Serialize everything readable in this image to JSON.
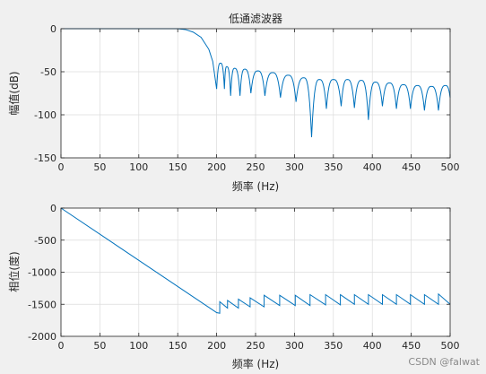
{
  "chart_data": [
    {
      "type": "line",
      "title": "低通滤波器",
      "xlabel": "频率 (Hz)",
      "ylabel": "幅值(dB)",
      "xlim": [
        0,
        500
      ],
      "ylim": [
        -150,
        0
      ],
      "xticks": [
        0,
        50,
        100,
        150,
        200,
        250,
        300,
        350,
        400,
        450,
        500
      ],
      "yticks": [
        0,
        -50,
        -100,
        -150
      ],
      "grid": true,
      "line_color": "#0072BD",
      "series": [
        {
          "x": [
            0,
            20,
            40,
            60,
            80,
            100,
            120,
            140,
            150,
            160,
            170,
            180,
            190,
            195,
            200
          ],
          "y": [
            0,
            0,
            0,
            0,
            0,
            0,
            0,
            0,
            0,
            -1,
            -4,
            -10,
            -24,
            -38,
            -70
          ]
        }
      ],
      "lobe_peaks": [
        {
          "f": 205,
          "db": -40
        },
        {
          "f": 213,
          "db": -44
        },
        {
          "f": 223,
          "db": -46
        },
        {
          "f": 236,
          "db": -47
        },
        {
          "f": 253,
          "db": -49
        },
        {
          "f": 272,
          "db": -51
        },
        {
          "f": 292,
          "db": -54
        },
        {
          "f": 312,
          "db": -57
        },
        {
          "f": 332,
          "db": -59
        },
        {
          "f": 350,
          "db": -59
        },
        {
          "f": 368,
          "db": -59
        },
        {
          "f": 386,
          "db": -60
        },
        {
          "f": 404,
          "db": -62
        },
        {
          "f": 422,
          "db": -63
        },
        {
          "f": 440,
          "db": -65
        },
        {
          "f": 458,
          "db": -66
        },
        {
          "f": 476,
          "db": -67
        },
        {
          "f": 494,
          "db": -66
        }
      ],
      "lobe_nulls": [
        {
          "f": 210,
          "db": -70
        },
        {
          "f": 218,
          "db": -78
        },
        {
          "f": 230,
          "db": -78
        },
        {
          "f": 244,
          "db": -75
        },
        {
          "f": 262,
          "db": -78
        },
        {
          "f": 282,
          "db": -80
        },
        {
          "f": 302,
          "db": -85
        },
        {
          "f": 322,
          "db": -126
        },
        {
          "f": 341,
          "db": -93
        },
        {
          "f": 360,
          "db": -90
        },
        {
          "f": 377,
          "db": -92
        },
        {
          "f": 395,
          "db": -106
        },
        {
          "f": 413,
          "db": -90
        },
        {
          "f": 431,
          "db": -93
        },
        {
          "f": 449,
          "db": -93
        },
        {
          "f": 467,
          "db": -95
        },
        {
          "f": 485,
          "db": -95
        }
      ],
      "end_point": {
        "f": 500,
        "db": -80
      }
    },
    {
      "type": "line",
      "title": "",
      "xlabel": "频率 (Hz)",
      "ylabel": "相位(度)",
      "xlim": [
        0,
        500
      ],
      "ylim": [
        -2000,
        0
      ],
      "xticks": [
        0,
        50,
        100,
        150,
        200,
        250,
        300,
        350,
        400,
        450,
        500
      ],
      "yticks": [
        0,
        -500,
        -1000,
        -1500,
        -2000
      ],
      "grid": true,
      "line_color": "#0072BD",
      "series": [
        {
          "x": [
            0,
            200
          ],
          "y": [
            0,
            -1630
          ]
        }
      ],
      "sawtooth": [
        {
          "f_start": 200,
          "f_end": 204,
          "start": -1630,
          "end": -1640
        },
        {
          "f_start": 204,
          "f_end": 214,
          "start": -1460,
          "end": -1560
        },
        {
          "f_start": 214,
          "f_end": 228,
          "start": -1440,
          "end": -1560
        },
        {
          "f_start": 228,
          "f_end": 243,
          "start": -1420,
          "end": -1540
        },
        {
          "f_start": 243,
          "f_end": 261,
          "start": -1400,
          "end": -1540
        },
        {
          "f_start": 261,
          "f_end": 281,
          "start": -1360,
          "end": -1520
        },
        {
          "f_start": 281,
          "f_end": 301,
          "start": -1360,
          "end": -1520
        },
        {
          "f_start": 301,
          "f_end": 320,
          "start": -1360,
          "end": -1520
        },
        {
          "f_start": 320,
          "f_end": 340,
          "start": -1350,
          "end": -1510
        },
        {
          "f_start": 340,
          "f_end": 359,
          "start": -1350,
          "end": -1510
        },
        {
          "f_start": 359,
          "f_end": 377,
          "start": -1350,
          "end": -1500
        },
        {
          "f_start": 377,
          "f_end": 395,
          "start": -1350,
          "end": -1500
        },
        {
          "f_start": 395,
          "f_end": 413,
          "start": -1350,
          "end": -1500
        },
        {
          "f_start": 413,
          "f_end": 431,
          "start": -1350,
          "end": -1500
        },
        {
          "f_start": 431,
          "f_end": 449,
          "start": -1350,
          "end": -1500
        },
        {
          "f_start": 449,
          "f_end": 467,
          "start": -1350,
          "end": -1500
        },
        {
          "f_start": 467,
          "f_end": 485,
          "start": -1350,
          "end": -1500
        },
        {
          "f_start": 485,
          "f_end": 500,
          "start": -1340,
          "end": -1500
        }
      ]
    }
  ],
  "watermark": "CSDN @falwat"
}
